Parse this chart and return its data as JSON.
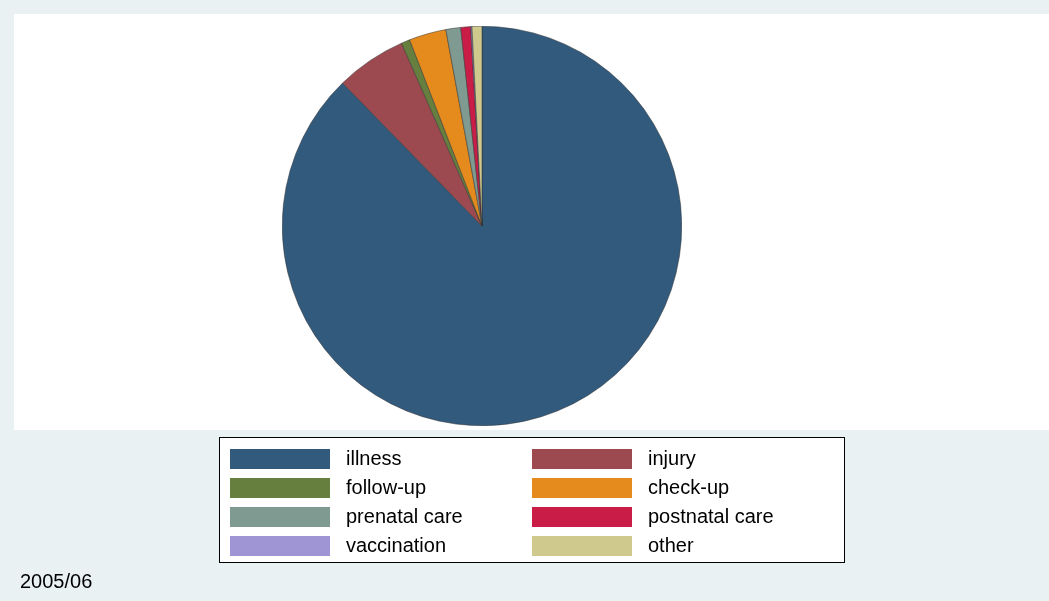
{
  "chart_data": {
    "type": "pie",
    "categories": [
      "illness",
      "injury",
      "follow-up",
      "check-up",
      "prenatal care",
      "postnatal care",
      "vaccination",
      "other"
    ],
    "values": [
      87.7,
      5.7,
      0.7,
      3.0,
      1.2,
      0.8,
      0.1,
      0.8
    ],
    "colors": [
      "#325a7d",
      "#9c4a4f",
      "#667f3f",
      "#e58b1d",
      "#7f9a90",
      "#c91d48",
      "#9f94d4",
      "#d0c98e"
    ],
    "legend": "bottom",
    "annotations": [
      "2005/06"
    ]
  }
}
